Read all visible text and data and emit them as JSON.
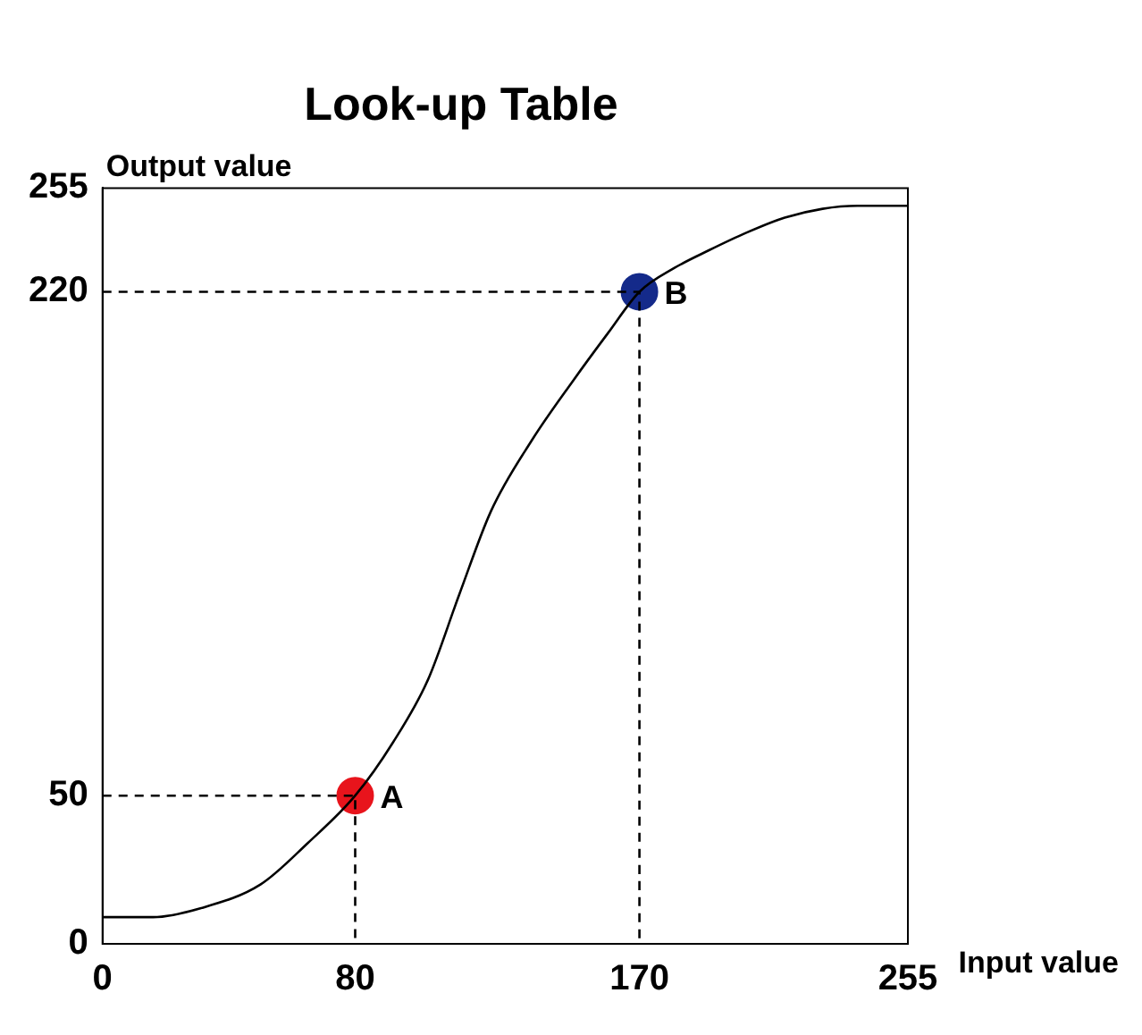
{
  "chart_data": {
    "type": "line",
    "title": "Look-up Table",
    "xlabel": "Input value",
    "ylabel": "Output value",
    "xlim": [
      0,
      255
    ],
    "ylim": [
      0,
      255
    ],
    "xticks": [
      0,
      80,
      170,
      255
    ],
    "yticks": [
      0,
      50,
      220,
      255
    ],
    "grid": false,
    "legend": false,
    "marker": "none",
    "series": [
      {
        "color": "#000000",
        "x": [
          0,
          16,
          31,
          50,
          65,
          80,
          92,
          103,
          113,
          123,
          136,
          149,
          160,
          170,
          181,
          192,
          204,
          216,
          228,
          239,
          247,
          255
        ],
        "values": [
          9,
          9,
          12,
          20,
          34,
          50,
          68,
          89,
          118,
          146,
          170,
          190,
          206,
          220,
          228,
          234,
          240,
          245,
          248,
          249,
          249,
          249
        ]
      },
      {
        "type": "line",
        "line_style": "dashed",
        "color": "#000000",
        "x": [
          0,
          80,
          80
        ],
        "values": [
          50,
          50,
          0
        ]
      },
      {
        "type": "line",
        "line_style": "dashed",
        "color": "#000000",
        "x": [
          0,
          170,
          170
        ],
        "values": [
          220,
          220,
          0
        ]
      },
      {
        "type": "scatter",
        "marker": "circle",
        "x": [
          80,
          170
        ],
        "values": [
          50,
          220
        ],
        "colors": [
          "#e8141c",
          "#142a8a"
        ]
      }
    ],
    "annotations": [
      {
        "text": "A",
        "x": 80,
        "y": 50
      },
      {
        "text": "B",
        "x": 170,
        "y": 220
      }
    ]
  }
}
